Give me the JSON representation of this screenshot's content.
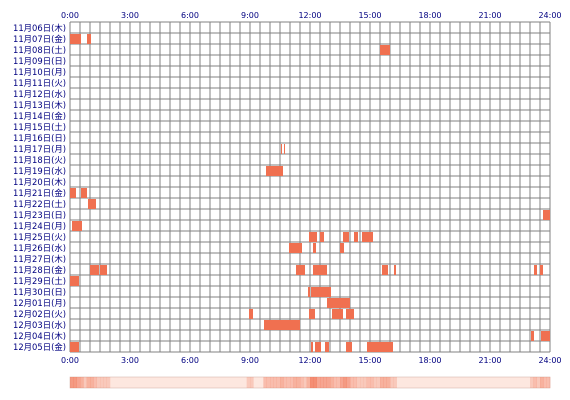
{
  "chart_data": {
    "type": "heatmap",
    "title": "",
    "xlabel": "",
    "ylabel": "",
    "x_range_hours": [
      0,
      24
    ],
    "x_ticks": [
      "0:00",
      "3:00",
      "6:00",
      "9:00",
      "12:00",
      "15:00",
      "18:00",
      "21:00",
      "24:00"
    ],
    "grid": true,
    "legend": "none",
    "colors": {
      "bar": "#f07050",
      "grid": "#808080",
      "label": "#000080",
      "density_base": "#fde7df"
    },
    "rows": [
      {
        "label": "11月06日(木)",
        "intervals": []
      },
      {
        "label": "11月07日(金)",
        "intervals": [
          [
            0.0,
            0.55
          ],
          [
            0.85,
            1.05
          ]
        ]
      },
      {
        "label": "11月08日(土)",
        "intervals": [
          [
            15.5,
            16.0
          ]
        ]
      },
      {
        "label": "11月09日(日)",
        "intervals": []
      },
      {
        "label": "11月10日(月)",
        "intervals": []
      },
      {
        "label": "11月11日(火)",
        "intervals": []
      },
      {
        "label": "11月12日(水)",
        "intervals": []
      },
      {
        "label": "11月13日(木)",
        "intervals": []
      },
      {
        "label": "11月14日(金)",
        "intervals": []
      },
      {
        "label": "11月15日(土)",
        "intervals": []
      },
      {
        "label": "11月16日(日)",
        "intervals": []
      },
      {
        "label": "11月17日(月)",
        "intervals": [
          [
            10.55,
            10.6
          ],
          [
            10.7,
            10.75
          ]
        ]
      },
      {
        "label": "11月18日(火)",
        "intervals": []
      },
      {
        "label": "11月19日(水)",
        "intervals": [
          [
            9.8,
            10.65
          ]
        ]
      },
      {
        "label": "11月20日(木)",
        "intervals": []
      },
      {
        "label": "11月21日(金)",
        "intervals": [
          [
            0.0,
            0.3
          ],
          [
            0.55,
            0.85
          ]
        ]
      },
      {
        "label": "11月22日(土)",
        "intervals": [
          [
            0.9,
            1.3
          ]
        ]
      },
      {
        "label": "11月23日(日)",
        "intervals": [
          [
            23.65,
            24.0
          ]
        ]
      },
      {
        "label": "11月24日(月)",
        "intervals": [
          [
            0.1,
            0.6
          ]
        ]
      },
      {
        "label": "11月25日(火)",
        "intervals": [
          [
            11.95,
            12.35
          ],
          [
            12.5,
            12.7
          ],
          [
            13.65,
            13.95
          ],
          [
            14.2,
            14.4
          ],
          [
            14.6,
            15.15
          ]
        ]
      },
      {
        "label": "11月26日(水)",
        "intervals": [
          [
            10.95,
            11.6
          ],
          [
            12.15,
            12.3
          ],
          [
            13.5,
            13.7
          ]
        ]
      },
      {
        "label": "11月27日(木)",
        "intervals": []
      },
      {
        "label": "11月28日(金)",
        "intervals": [
          [
            1.0,
            1.45
          ],
          [
            1.5,
            1.85
          ],
          [
            11.3,
            11.75
          ],
          [
            12.15,
            12.85
          ],
          [
            15.6,
            15.9
          ],
          [
            16.2,
            16.3
          ],
          [
            23.2,
            23.35
          ],
          [
            23.5,
            23.65
          ]
        ]
      },
      {
        "label": "11月29日(土)",
        "intervals": [
          [
            0.0,
            0.45
          ]
        ]
      },
      {
        "label": "11月30日(日)",
        "intervals": [
          [
            11.9,
            12.0
          ],
          [
            12.05,
            13.05
          ]
        ]
      },
      {
        "label": "12月01日(月)",
        "intervals": [
          [
            12.85,
            14.0
          ]
        ]
      },
      {
        "label": "12月02日(火)",
        "intervals": [
          [
            8.95,
            9.15
          ],
          [
            11.95,
            12.25
          ],
          [
            13.1,
            13.65
          ],
          [
            13.8,
            14.2
          ]
        ]
      },
      {
        "label": "12月03日(水)",
        "intervals": [
          [
            9.7,
            11.5
          ]
        ]
      },
      {
        "label": "12月04日(木)",
        "intervals": [
          [
            23.05,
            23.2
          ],
          [
            23.55,
            24.0
          ]
        ]
      },
      {
        "label": "12月05日(金)",
        "intervals": [
          [
            0.0,
            0.45
          ],
          [
            12.05,
            12.15
          ],
          [
            12.25,
            12.55
          ],
          [
            12.75,
            12.95
          ],
          [
            13.8,
            14.1
          ],
          [
            14.85,
            16.15
          ]
        ]
      }
    ]
  }
}
